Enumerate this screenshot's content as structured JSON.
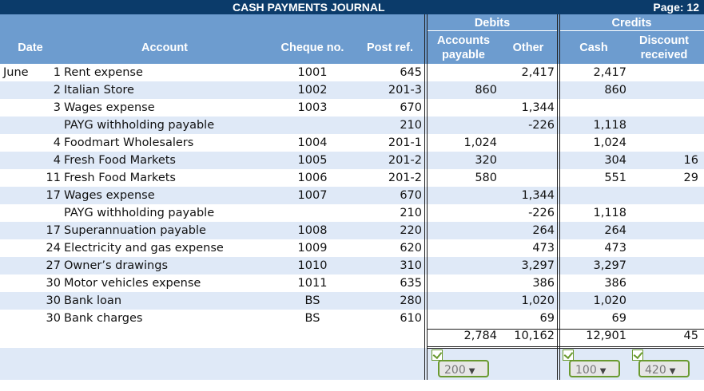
{
  "journal": {
    "title": "CASH PAYMENTS JOURNAL",
    "page": "Page: 12"
  },
  "headers": {
    "date": "Date",
    "account": "Account",
    "cheque": "Cheque no.",
    "post_ref": "Post ref.",
    "debits": "Debits",
    "ap_line1": "Accounts",
    "ap_line2": "payable",
    "other": "Other",
    "credits": "Credits",
    "cash": "Cash",
    "disc_line1": "Discount",
    "disc_line2": "received"
  },
  "rows": [
    {
      "month": "June",
      "day": "1",
      "account": "Rent expense",
      "cheque": "1001",
      "post_ref": "645",
      "ap": "",
      "other": "2,417",
      "cash": "2,417",
      "discount": ""
    },
    {
      "month": "",
      "day": "2",
      "account": "Italian Store",
      "cheque": "1002",
      "post_ref": "201-3",
      "ap": "860",
      "other": "",
      "cash": "860",
      "discount": ""
    },
    {
      "month": "",
      "day": "3",
      "account": "Wages expense",
      "cheque": "1003",
      "post_ref": "670",
      "ap": "",
      "other": "1,344",
      "cash": "",
      "discount": ""
    },
    {
      "month": "",
      "day": "",
      "account": "PAYG withholding payable",
      "cheque": "",
      "post_ref": "210",
      "ap": "",
      "other": "-226",
      "cash": "1,118",
      "discount": ""
    },
    {
      "month": "",
      "day": "4",
      "account": "Foodmart Wholesalers",
      "cheque": "1004",
      "post_ref": "201-1",
      "ap": "1,024",
      "other": "",
      "cash": "1,024",
      "discount": ""
    },
    {
      "month": "",
      "day": "4",
      "account": "Fresh Food Markets",
      "cheque": "1005",
      "post_ref": "201-2",
      "ap": "320",
      "other": "",
      "cash": "304",
      "discount": "16"
    },
    {
      "month": "",
      "day": "11",
      "account": "Fresh Food Markets",
      "cheque": "1006",
      "post_ref": "201-2",
      "ap": "580",
      "other": "",
      "cash": "551",
      "discount": "29"
    },
    {
      "month": "",
      "day": "17",
      "account": "Wages expense",
      "cheque": "1007",
      "post_ref": "670",
      "ap": "",
      "other": "1,344",
      "cash": "",
      "discount": ""
    },
    {
      "month": "",
      "day": "",
      "account": "PAYG withholding payable",
      "cheque": "",
      "post_ref": "210",
      "ap": "",
      "other": "-226",
      "cash": "1,118",
      "discount": ""
    },
    {
      "month": "",
      "day": "17",
      "account": "Superannuation payable",
      "cheque": "1008",
      "post_ref": "220",
      "ap": "",
      "other": "264",
      "cash": "264",
      "discount": ""
    },
    {
      "month": "",
      "day": "24",
      "account": "Electricity and gas expense",
      "cheque": "1009",
      "post_ref": "620",
      "ap": "",
      "other": "473",
      "cash": "473",
      "discount": ""
    },
    {
      "month": "",
      "day": "27",
      "account": "Owner’s drawings",
      "cheque": "1010",
      "post_ref": "310",
      "ap": "",
      "other": "3,297",
      "cash": "3,297",
      "discount": ""
    },
    {
      "month": "",
      "day": "30",
      "account": "Motor vehicles expense",
      "cheque": "1011",
      "post_ref": "635",
      "ap": "",
      "other": "386",
      "cash": "386",
      "discount": ""
    },
    {
      "month": "",
      "day": "30",
      "account": "Bank loan",
      "cheque": "BS",
      "post_ref": "280",
      "ap": "",
      "other": "1,020",
      "cash": "1,020",
      "discount": ""
    },
    {
      "month": "",
      "day": "30",
      "account": "Bank charges",
      "cheque": "BS",
      "post_ref": "610",
      "ap": "",
      "other": "69",
      "cash": "69",
      "discount": ""
    }
  ],
  "totals": {
    "ap": "2,784",
    "other": "10,162",
    "cash": "12,901",
    "discount": "45"
  },
  "posting_selects": {
    "ap": "200",
    "cash": "100",
    "discount": "420"
  },
  "colors": {
    "title_bar": "#0b3b6a",
    "header": "#6d9ccf",
    "stripe": "#dfe9f7",
    "select_border": "#6a9a30"
  }
}
